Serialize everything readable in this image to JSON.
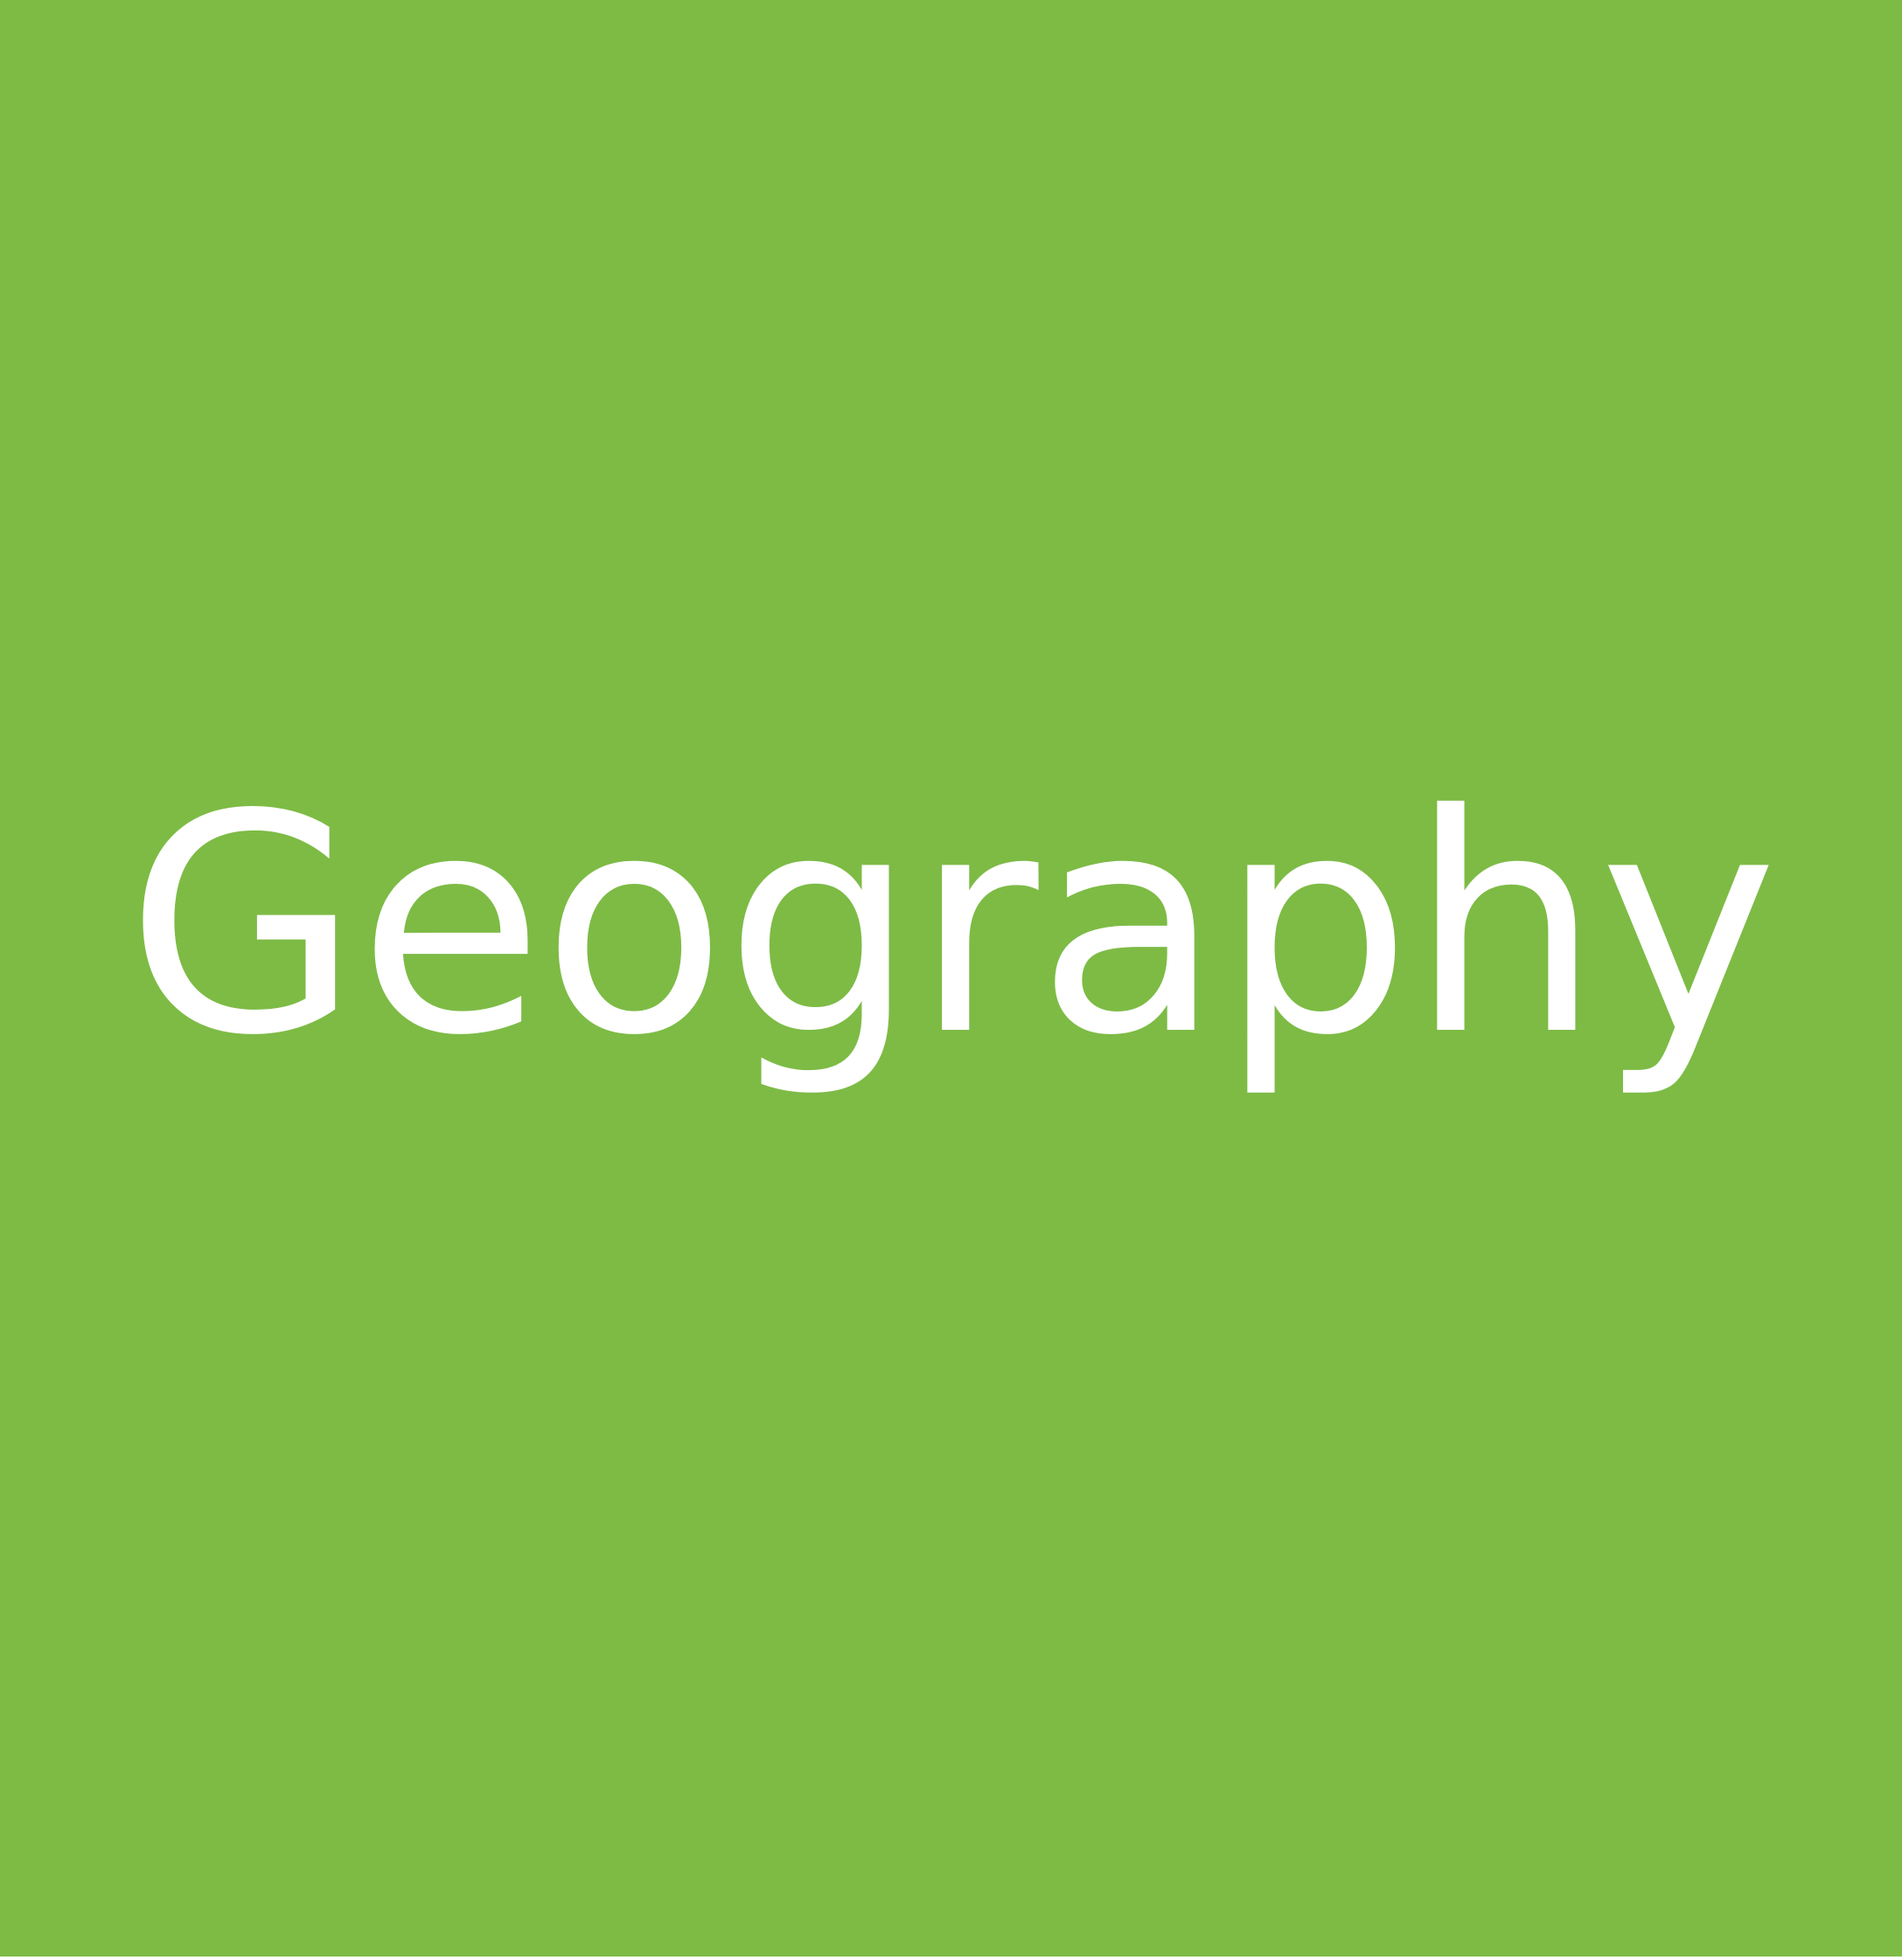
{
  "tile": {
    "label": "Geography",
    "background_color": "#7dbb45",
    "text_color": "#ffffff"
  }
}
